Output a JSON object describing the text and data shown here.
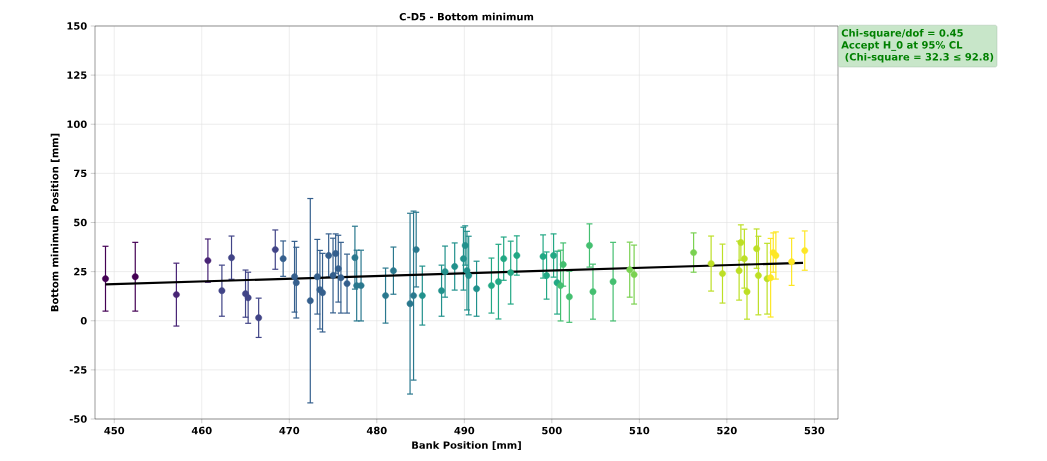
{
  "chart_data": {
    "type": "scatter",
    "title": "C-D5 - Bottom minimum",
    "xlabel": "Bank Position [mm]",
    "ylabel": "Bottom minimum Position [mm]",
    "annotations": [
      "Chi-square/dof = 0.45",
      "Accept H_0 at 95% CL",
      " (Chi-square = 32.3 ≤ 92.8)"
    ],
    "xlim": [
      447.8,
      532.7
    ],
    "ylim": [
      -50,
      150
    ],
    "xticks": [
      450,
      460,
      470,
      480,
      490,
      500,
      510,
      520,
      530
    ],
    "yticks": [
      -50,
      -25,
      0,
      25,
      50,
      75,
      100,
      125,
      150
    ],
    "grid": true,
    "marker": "circle",
    "series": [
      {
        "x": [
          449.0,
          452.4,
          457.1,
          460.7,
          462.3,
          463.4,
          465.0,
          465.3,
          466.5,
          468.4,
          469.3,
          470.6,
          470.8,
          472.4,
          473.2,
          473.5,
          473.8,
          474.5,
          475.0,
          475.3,
          475.6,
          475.9,
          476.6,
          477.5,
          477.7,
          478.2,
          481.0,
          481.9,
          483.8,
          484.5,
          484.2,
          485.2,
          487.4,
          487.8,
          488.9,
          489.9,
          490.1,
          490.3,
          490.5,
          491.4,
          493.1,
          493.9,
          494.5,
          495.3,
          496.0,
          499.0,
          499.4,
          500.2,
          500.6,
          501.0,
          501.3,
          502.0,
          504.3,
          504.7,
          507.0,
          508.9,
          509.4,
          516.2,
          518.2,
          519.5,
          521.4,
          521.6,
          522.0,
          522.3,
          523.4,
          523.6,
          524.6,
          525.0,
          525.3,
          525.6,
          527.4,
          528.9
        ],
        "values": [
          21.4,
          22.4,
          13.3,
          30.6,
          15.3,
          32.1,
          13.8,
          11.7,
          1.5,
          36.2,
          31.6,
          22.4,
          19.4,
          10.2,
          22.4,
          15.8,
          14.3,
          33.2,
          23,
          34.2,
          26.5,
          21.9,
          18.9,
          32.1,
          17.9,
          17.9,
          12.8,
          25.5,
          8.7,
          36.2,
          12.8,
          12.8,
          15.3,
          25,
          27.6,
          31.6,
          38.3,
          25.5,
          23,
          16.3,
          17.9,
          19.9,
          31.6,
          24.5,
          33.2,
          32.7,
          23,
          33.2,
          19.4,
          17.9,
          28.6,
          12.2,
          38.3,
          14.8,
          19.9,
          26,
          23.5,
          34.7,
          29.1,
          24,
          25.5,
          39.8,
          31.6,
          14.8,
          36.7,
          23,
          21.4,
          21.9,
          34.7,
          33.2,
          30,
          35.7
        ],
        "errors": [
          16.5,
          17.5,
          16,
          11,
          13,
          11,
          12,
          13,
          10,
          10,
          9,
          18,
          18,
          52,
          19,
          20,
          20,
          11,
          19,
          10,
          17,
          18,
          15,
          16,
          18,
          18,
          14,
          12,
          46,
          19,
          43,
          15,
          13,
          13,
          12,
          16,
          10,
          20,
          20,
          14,
          14,
          19,
          11,
          16,
          10,
          11,
          12,
          11,
          16,
          18,
          11,
          13,
          11,
          14,
          20,
          14,
          15,
          10,
          14,
          15,
          15,
          9,
          15,
          14,
          10,
          20,
          18,
          20,
          10,
          12,
          12,
          10
        ],
        "colors": [
          "#440154",
          "#440154",
          "#482475",
          "#482475",
          "#414487",
          "#414487",
          "#414487",
          "#414487",
          "#414487",
          "#414487",
          "#355f8d",
          "#355f8d",
          "#355f8d",
          "#355f8d",
          "#355f8d",
          "#355f8d",
          "#355f8d",
          "#355f8d",
          "#355f8d",
          "#355f8d",
          "#355f8d",
          "#355f8d",
          "#355f8d",
          "#2a788e",
          "#2a788e",
          "#2a788e",
          "#2a788e",
          "#2a788e",
          "#2a788e",
          "#2a788e",
          "#2a788e",
          "#21918c",
          "#21918c",
          "#21918c",
          "#21918c",
          "#21918c",
          "#21918c",
          "#21918c",
          "#21918c",
          "#21918c",
          "#22a884",
          "#22a884",
          "#22a884",
          "#22a884",
          "#22a884",
          "#22a884",
          "#22a884",
          "#22a884",
          "#22a884",
          "#44bf70",
          "#44bf70",
          "#44bf70",
          "#44bf70",
          "#44bf70",
          "#44bf70",
          "#7ad151",
          "#7ad151",
          "#7ad151",
          "#bddf26",
          "#bddf26",
          "#bddf26",
          "#bddf26",
          "#bddf26",
          "#bddf26",
          "#bddf26",
          "#bddf26",
          "#bddf26",
          "#fde725",
          "#fde725",
          "#fde725",
          "#fde725",
          "#fde725"
        ]
      },
      {
        "type": "line",
        "marker": "none",
        "x": [
          449.0,
          528.7
        ],
        "values": [
          18.5,
          29.5
        ],
        "color": "#000000"
      }
    ]
  }
}
